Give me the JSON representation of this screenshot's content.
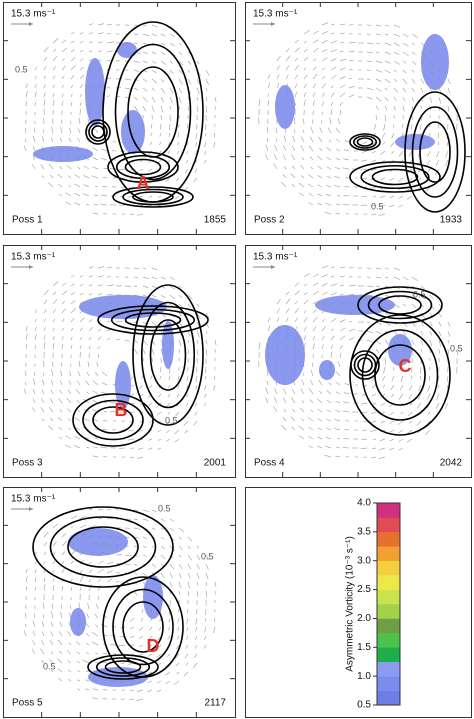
{
  "panels": [
    {
      "scale": "15.3 ms⁻¹",
      "name": "Poss 1",
      "time": "1855",
      "marker": "A",
      "contour_labels": [
        "0.5"
      ]
    },
    {
      "scale": "15.3 ms⁻¹",
      "name": "Poss 2",
      "time": "1933",
      "contour_labels": [
        "0.5"
      ]
    },
    {
      "scale": "15.3 ms⁻¹",
      "name": "Poss 3",
      "time": "2001",
      "marker": "B",
      "contour_labels": [
        "0.5"
      ]
    },
    {
      "scale": "15.3 ms⁻¹",
      "name": "Poss 4",
      "time": "2042",
      "marker": "C",
      "contour_labels": [
        "0.5",
        "0.5"
      ]
    },
    {
      "scale": "15.3 ms⁻¹",
      "name": "Poss 5",
      "time": "2117",
      "marker": "D",
      "contour_labels": [
        "0.5",
        "0.5",
        "0.5"
      ]
    }
  ],
  "colorbar": {
    "title": "Asymmetric Vorticity (10⁻³ s⁻¹)",
    "ylim": [
      0.5,
      4.0
    ],
    "yticks": [
      0.5,
      {
        "value": 1.0,
        "label": "1.0"
      },
      1.5,
      {
        "value": 2.0,
        "label": "2.0"
      },
      2.5,
      {
        "value": 3.0,
        "label": "3.0"
      },
      3.5,
      {
        "value": 4.0,
        "label": "4.0"
      }
    ],
    "colors": [
      "#6d7fe6",
      "#7b8bee",
      "#8d9bf2",
      "#1fae4c",
      "#4cc24a",
      "#6f9e45",
      "#a2d24a",
      "#cbe24f",
      "#ece84a",
      "#f2cf3c",
      "#f1a032",
      "#e8702f",
      "#e04b55",
      "#d2307f"
    ]
  }
}
